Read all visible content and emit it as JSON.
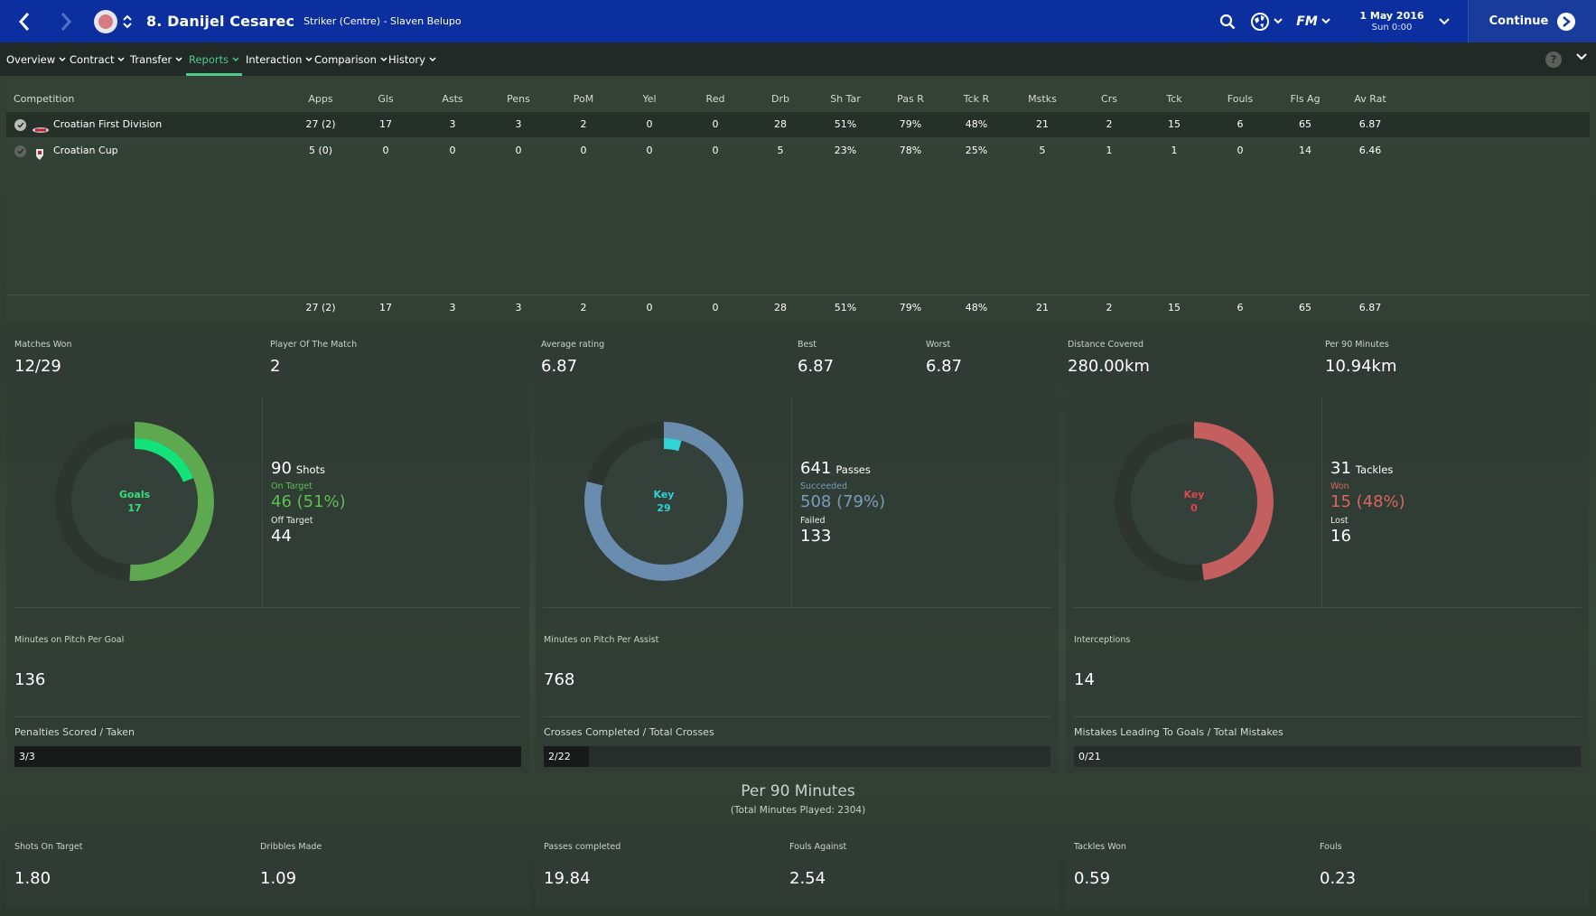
{
  "header": {
    "player_name": "8. Danijel Cesarec",
    "player_subtitle": "Striker (Centre) - Slaven Belupo",
    "date": "1 May 2016",
    "time": "Sun 0:00",
    "continue_label": "Continue",
    "brand": "FM"
  },
  "subnav": {
    "items": [
      {
        "label": "Overview"
      },
      {
        "label": "Contract"
      },
      {
        "label": "Transfer"
      },
      {
        "label": "Reports"
      },
      {
        "label": "Interaction"
      },
      {
        "label": "Comparison"
      },
      {
        "label": "History"
      }
    ],
    "active": "Reports",
    "help": "?"
  },
  "table": {
    "columns": [
      "Competition",
      "Apps",
      "Gls",
      "Asts",
      "Pens",
      "PoM",
      "Yel",
      "Red",
      "Drb",
      "Sh Tar",
      "Pas R",
      "Tck R",
      "Mstks",
      "Crs",
      "Tck",
      "Fouls",
      "Fls Ag",
      "Av Rat"
    ],
    "rows": [
      {
        "competition": "Croatian First Division",
        "values": [
          "27 (2)",
          "17",
          "3",
          "3",
          "2",
          "0",
          "0",
          "28",
          "51%",
          "79%",
          "48%",
          "21",
          "2",
          "15",
          "6",
          "65",
          "6.87"
        ]
      },
      {
        "competition": "Croatian Cup",
        "values": [
          "5 (0)",
          "0",
          "0",
          "0",
          "0",
          "0",
          "0",
          "5",
          "23%",
          "78%",
          "25%",
          "5",
          "1",
          "1",
          "0",
          "14",
          "6.46"
        ]
      }
    ],
    "totals": [
      "27 (2)",
      "17",
      "3",
      "3",
      "2",
      "0",
      "0",
      "28",
      "51%",
      "79%",
      "48%",
      "21",
      "2",
      "15",
      "6",
      "65",
      "6.87"
    ]
  },
  "summary": {
    "matches_won": {
      "label": "Matches Won",
      "value": "12/29"
    },
    "pom": {
      "label": "Player Of The Match",
      "value": "2"
    },
    "avg_rating": {
      "label": "Average rating",
      "value": "6.87"
    },
    "best": {
      "label": "Best",
      "value": "6.87"
    },
    "worst": {
      "label": "Worst",
      "value": "6.87"
    },
    "distance": {
      "label": "Distance Covered",
      "value": "280.00km"
    },
    "per90": {
      "label": "Per 90 Minutes",
      "value": "10.94km"
    }
  },
  "panels": [
    {
      "donut": {
        "center_label": "Goals",
        "center_value": "17",
        "color_main": "#5ea84f",
        "color_key": "#13e27a",
        "color_text": "#33e07a",
        "main_fraction": 0.51,
        "key_fraction": 0.19
      },
      "total": "90",
      "total_label": "Shots",
      "l1": "On Target",
      "v1": "46 (51%)",
      "l1_color": "#5fbf55",
      "l2": "Off Target",
      "v2": "44",
      "mid_label": "Minutes on Pitch Per Goal",
      "mid_value": "136",
      "bar_label": "Penalties Scored / Taken",
      "bar_value": "3/3",
      "bar_fraction": 1.0
    },
    {
      "donut": {
        "center_label": "Key",
        "center_value": "29",
        "color_main": "#6a8caf",
        "color_key": "#2fd3d8",
        "color_text": "#2fd3d8",
        "main_fraction": 0.79,
        "key_fraction": 0.045
      },
      "total": "641",
      "total_label": "Passes",
      "l1": "Succeeded",
      "v1": "508 (79%)",
      "l1_color": "#7c9cbc",
      "l2": "Failed",
      "v2": "133",
      "mid_label": "Minutes on Pitch Per Assist",
      "mid_value": "768",
      "bar_label": "Crosses Completed / Total Crosses",
      "bar_value": "2/22",
      "bar_fraction": 0.09
    },
    {
      "donut": {
        "center_label": "Key",
        "center_value": "0",
        "color_main": "#c45f5f",
        "color_key": "#e0474b",
        "color_text": "#e0474b",
        "main_fraction": 0.48,
        "key_fraction": 0
      },
      "total": "31",
      "total_label": "Tackles",
      "l1": "Won",
      "v1": "15 (48%)",
      "l1_color": "#d86560",
      "l2": "Lost",
      "v2": "16",
      "mid_label": "Interceptions",
      "mid_value": "14",
      "bar_label": "Mistakes Leading To Goals / Total Mistakes",
      "bar_value": "0/21",
      "bar_fraction": 0
    }
  ],
  "per90": {
    "title": "Per 90 Minutes",
    "subtitle": "(Total Minutes Played: 2304)",
    "items": [
      {
        "label": "Shots On Target",
        "value": "1.80"
      },
      {
        "label": "Dribbles Made",
        "value": "1.09"
      },
      {
        "label": "Passes completed",
        "value": "19.84"
      },
      {
        "label": "Fouls Against",
        "value": "2.54"
      },
      {
        "label": "Tackles Won",
        "value": "0.59"
      },
      {
        "label": "Fouls",
        "value": "0.23"
      }
    ]
  }
}
